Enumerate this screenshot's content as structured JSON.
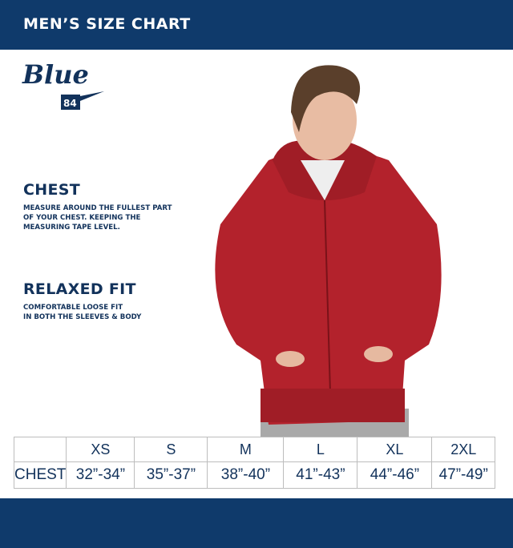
{
  "header": {
    "title": "MEN’S SIZE CHART"
  },
  "logo": {
    "text": "Blue",
    "number": "84"
  },
  "chest": {
    "heading": "CHEST",
    "lines": [
      "MEASURE AROUND THE FULLEST PART",
      "OF YOUR CHEST. KEEPING THE",
      "MEASURING TAPE LEVEL."
    ]
  },
  "fit": {
    "heading": "RELAXED FIT",
    "lines": [
      "COMFORTABLE LOOSE FIT",
      "IN BOTH THE SLEEVES &  BODY"
    ]
  },
  "table": {
    "sizes": [
      "XS",
      "S",
      "M",
      "L",
      "XL",
      "2XL"
    ],
    "row_label": "CHEST",
    "chest": [
      "32”-34”",
      "35”-37”",
      "38”-40”",
      "41”-43”",
      "44”-46”",
      "47”-49”"
    ]
  },
  "colors": {
    "navy": "#0f3a6b",
    "hoodie": "#b3222c"
  }
}
